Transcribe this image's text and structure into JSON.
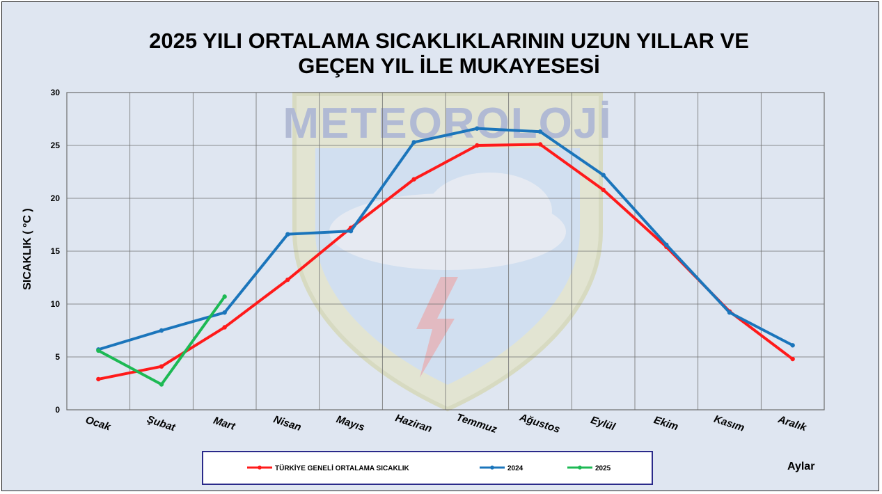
{
  "colors": {
    "background": "#dfe6f1",
    "plot_border": "#6e6e6e",
    "grid": "#6e6e6e",
    "series_avg": "#ff1a1a",
    "series_2024": "#1b75bb",
    "series_2025": "#1db954",
    "legend_border": "#2a2a8a",
    "watermark": "#c9c56a"
  },
  "watermark_text": "METEOROLOJİ",
  "chart_data": {
    "type": "line",
    "title_lines": [
      "2025 YILI ORTALAMA SICAKLIKLARININ UZUN YILLAR VE",
      "GEÇEN  YIL İLE MUKAYESESİ"
    ],
    "ylabel": "SICAKLIK ( °C )",
    "xlabel": "Aylar",
    "ylim": [
      0,
      30
    ],
    "yticks": [
      0,
      5,
      10,
      15,
      20,
      25,
      30
    ],
    "grid": true,
    "legend_position": "bottom",
    "categories": [
      "Ocak",
      "Şubat",
      "Mart",
      "Nisan",
      "Mayıs",
      "Haziran",
      "Temmuz",
      "Ağustos",
      "Eylül",
      "Ekim",
      "Kasım",
      "Aralık"
    ],
    "series": [
      {
        "name": "TÜRKİYE GENELİ ORTALAMA SICAKLIK",
        "color": "#ff1a1a",
        "values": [
          2.9,
          4.1,
          7.8,
          12.3,
          17.2,
          21.8,
          25.0,
          25.1,
          20.8,
          15.4,
          9.3,
          4.8
        ]
      },
      {
        "name": "2024",
        "color": "#1b75bb",
        "values": [
          5.7,
          7.5,
          9.2,
          16.6,
          16.9,
          25.3,
          26.6,
          26.3,
          22.2,
          15.6,
          9.2,
          6.1
        ]
      },
      {
        "name": "2025",
        "color": "#1db954",
        "values": [
          5.6,
          2.4,
          10.7,
          null,
          null,
          null,
          null,
          null,
          null,
          null,
          null,
          null
        ]
      }
    ]
  }
}
